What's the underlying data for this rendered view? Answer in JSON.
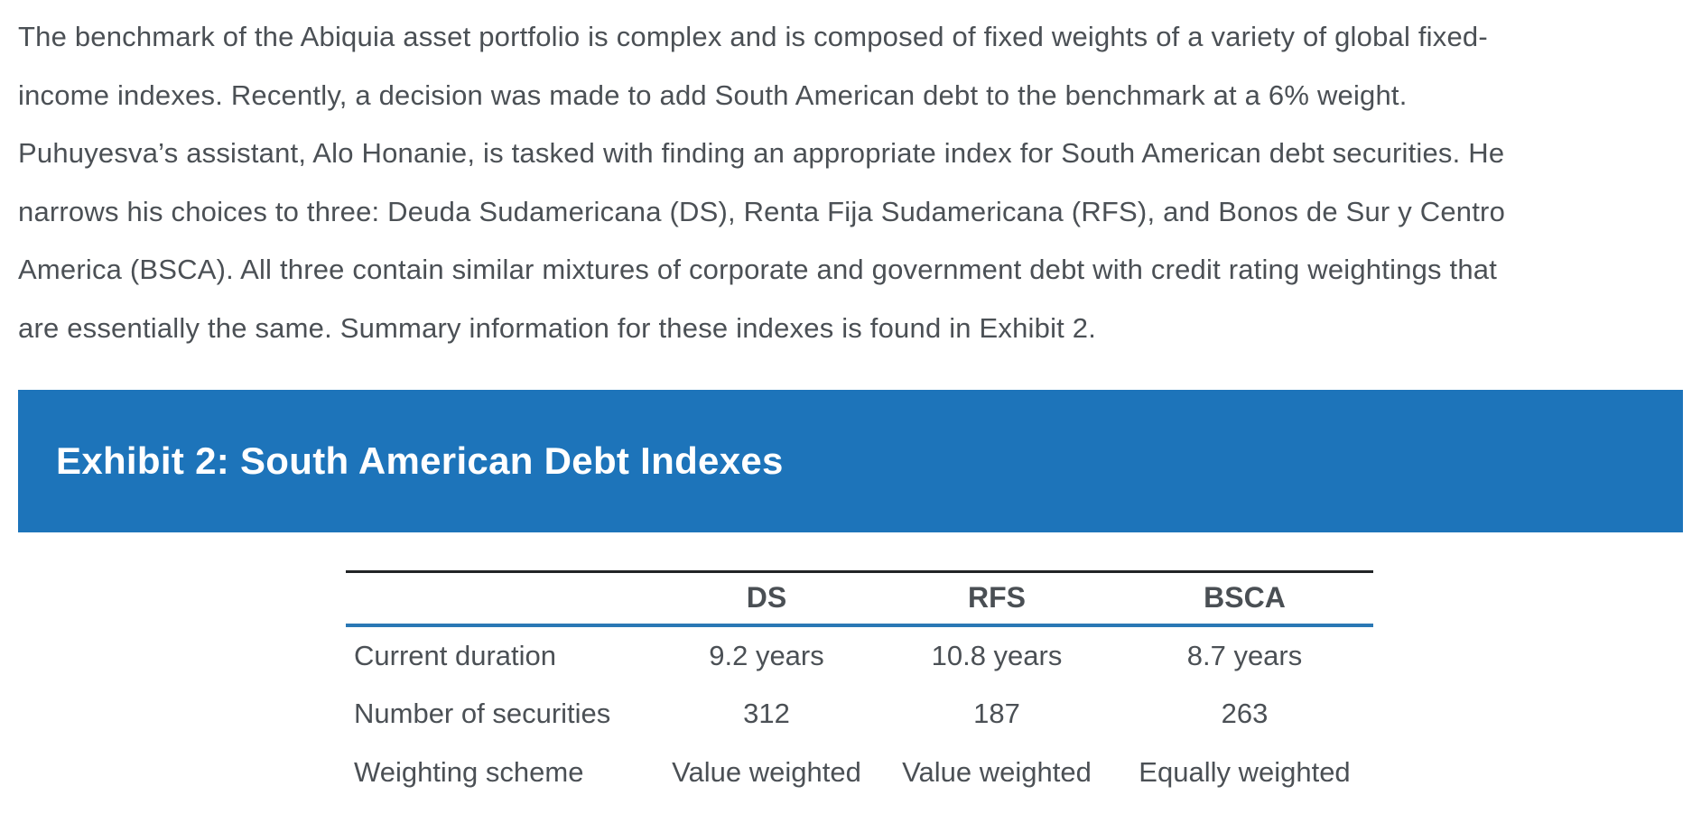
{
  "intro": {
    "lines": [
      "The benchmark of the Abiquia asset portfolio is complex and is composed of fixed weights of a variety of global fixed-",
      "income indexes. Recently, a decision was made to add South American debt to the benchmark at a 6% weight.",
      "Puhuyesva’s assistant, Alo Honanie, is tasked with finding an appropriate index for South American debt securities. He",
      "narrows his choices to three: Deuda Sudamericana (DS), Renta Fija Sudamericana (RFS), and Bonos de Sur y Centro",
      "America (BSCA). All three contain similar mixtures of corporate and government debt with credit rating weightings that",
      "are essentially the same. Summary information for these indexes is found in Exhibit 2."
    ]
  },
  "exhibit": {
    "title": "Exhibit 2: South American Debt Indexes"
  },
  "table": {
    "headers": [
      "DS",
      "RFS",
      "BSCA"
    ],
    "rows": [
      {
        "label": "Current duration",
        "values": [
          "9.2 years",
          "10.8 years",
          "8.7 years"
        ]
      },
      {
        "label": "Number of securities",
        "values": [
          "312",
          "187",
          "263"
        ]
      },
      {
        "label": "Weighting scheme",
        "values": [
          "Value weighted",
          "Value weighted",
          "Equally weighted"
        ]
      }
    ]
  },
  "colors": {
    "exhibit_bar": "#1d74ba",
    "exhibit_title_text": "#ffffff",
    "table_top_rule": "#212426",
    "table_header_rule": "#2a78b5",
    "body_text": "#4b5055"
  }
}
